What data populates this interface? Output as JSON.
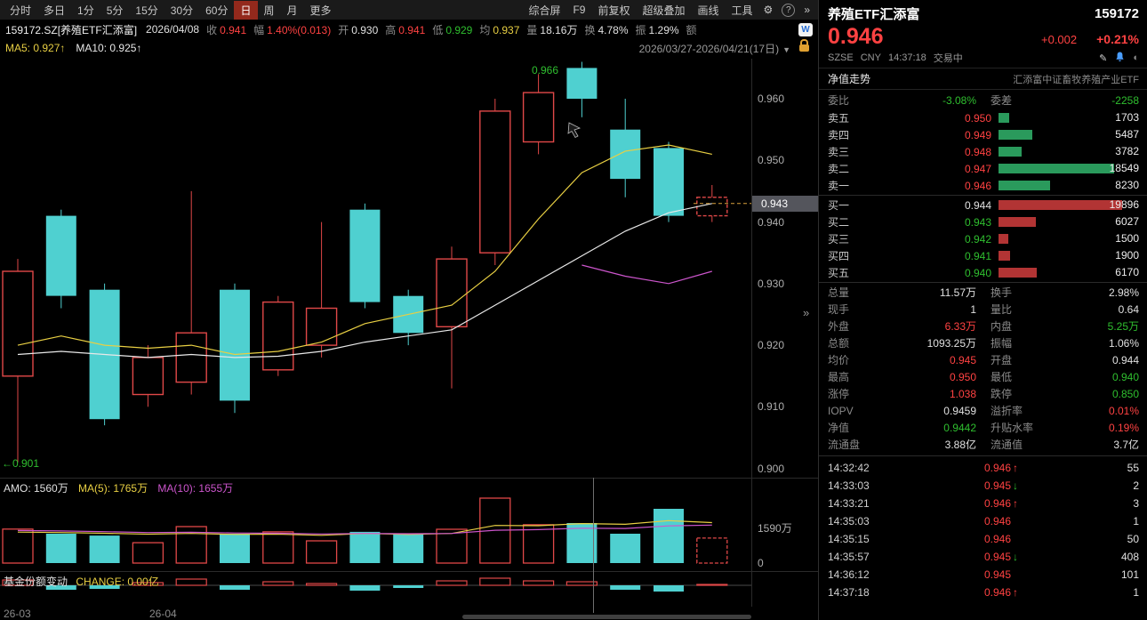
{
  "colors": {
    "up": "#e04848",
    "down": "#4fd0d0",
    "text_up": "#ff4242",
    "text_down": "#2fbf2f",
    "ma5": "#e8cf43",
    "ma10": "#e8e8e8",
    "nav": "#cc55cc",
    "bar_green": "#2a9a5c",
    "bar_red": "#b23434",
    "marker_bg": "#54555c",
    "dash_line": "#d9a13d"
  },
  "toolbar": {
    "periods": [
      "分时",
      "多日",
      "1分",
      "5分",
      "15分",
      "30分",
      "60分",
      "日",
      "周",
      "月",
      "更多"
    ],
    "active_period": "日",
    "tools": [
      "综合屏",
      "F9",
      "前复权",
      "超级叠加",
      "画线",
      "工具"
    ],
    "gear_icon": "⚙",
    "help_icon": "?",
    "more_icon": "»"
  },
  "info_bar": {
    "symbol": "159172.SZ[养殖ETF汇添富]",
    "date": "2026/04/08",
    "badge": "W",
    "fields": [
      {
        "label": "收",
        "value": "0.941",
        "color": "up"
      },
      {
        "label": "幅",
        "value": "1.40%(0.013)",
        "color": "up"
      },
      {
        "label": "开",
        "value": "0.930",
        "color": "flat"
      },
      {
        "label": "高",
        "value": "0.941",
        "color": "up"
      },
      {
        "label": "低",
        "value": "0.929",
        "color": "down"
      },
      {
        "label": "均",
        "value": "0.937",
        "color": "avg"
      },
      {
        "label": "量",
        "value": "18.16万",
        "color": "flat"
      },
      {
        "label": "换",
        "value": "4.78%",
        "color": "flat"
      },
      {
        "label": "振",
        "value": "1.29%",
        "color": "flat"
      },
      {
        "label": "额",
        "value": "",
        "color": "flat"
      }
    ]
  },
  "ma_bar": {
    "ma5": "MA5: 0.927↑",
    "ma10": "MA10: 0.925↑",
    "range": "2026/03/27-2026/04/21(17日)"
  },
  "chart_data": {
    "type": "candlestick",
    "x_labels": [
      {
        "label": "26-03",
        "x": 4
      },
      {
        "label": "26-04",
        "x": 168
      }
    ],
    "price": {
      "ymax": 0.9665,
      "ymin": 0.8985,
      "yticks": [
        "0.960",
        "0.950",
        "0.940",
        "0.930",
        "0.920",
        "0.910",
        "0.900"
      ],
      "ytick_values": [
        0.96,
        0.95,
        0.94,
        0.93,
        0.92,
        0.91,
        0.9
      ],
      "candles": [
        [
          0.915,
          0.932,
          0.934,
          0.901
        ],
        [
          0.941,
          0.928,
          0.942,
          0.926
        ],
        [
          0.929,
          0.908,
          0.93,
          0.907
        ],
        [
          0.912,
          0.918,
          0.92,
          0.91
        ],
        [
          0.914,
          0.922,
          0.945,
          0.912
        ],
        [
          0.929,
          0.911,
          0.93,
          0.909
        ],
        [
          0.916,
          0.927,
          0.928,
          0.915
        ],
        [
          0.92,
          0.926,
          0.94,
          0.918
        ],
        [
          0.942,
          0.927,
          0.943,
          0.926
        ],
        [
          0.928,
          0.922,
          0.929,
          0.92
        ],
        [
          0.923,
          0.934,
          0.936,
          0.913
        ],
        [
          0.935,
          0.958,
          0.96,
          0.933
        ],
        [
          0.953,
          0.961,
          0.964,
          0.951
        ],
        [
          0.965,
          0.96,
          0.966,
          0.957
        ],
        [
          0.955,
          0.947,
          0.96,
          0.944
        ],
        [
          0.952,
          0.941,
          0.953,
          0.94
        ],
        [
          0.941,
          0.944,
          0.946,
          0.94
        ]
      ],
      "ma5": [
        0.92,
        0.9215,
        0.92,
        0.9195,
        0.92,
        0.9185,
        0.919,
        0.9205,
        0.9235,
        0.925,
        0.9265,
        0.932,
        0.9405,
        0.948,
        0.9515,
        0.9525,
        0.951
      ],
      "ma10": [
        0.9185,
        0.919,
        0.9185,
        0.918,
        0.9185,
        0.918,
        0.9182,
        0.919,
        0.9205,
        0.9215,
        0.9225,
        0.9265,
        0.9305,
        0.9345,
        0.9385,
        0.9415,
        0.943
      ],
      "nav_line": {
        "start": 13,
        "values": [
          0.933,
          0.9312,
          0.93,
          0.932
        ]
      },
      "high_annotation": {
        "label": "0.966",
        "value": 0.966
      },
      "low_annotation": {
        "label": "←0.901",
        "value": 0.901
      },
      "marker": {
        "label": "0.943",
        "value": 0.943
      }
    },
    "volume": {
      "header": {
        "amo": "AMO: 1560万",
        "ma5": "MA(5): 1765万",
        "ma10": "MA(10): 1655万"
      },
      "ymax": 3200,
      "yticks": [
        {
          "label": "1590万",
          "value": 1590
        },
        {
          "label": "0",
          "value": 0
        }
      ],
      "values": [
        1480,
        1280,
        1200,
        890,
        1590,
        1280,
        1360,
        970,
        1360,
        1280,
        1475,
        2830,
        1670,
        1745,
        1280,
        2365,
        1090
      ],
      "ma5": [
        1350,
        1330,
        1300,
        1260,
        1290,
        1250,
        1260,
        1210,
        1290,
        1250,
        1290,
        1640,
        1630,
        1720,
        1690,
        1850,
        1765
      ],
      "ma10": [
        1420,
        1400,
        1370,
        1330,
        1340,
        1310,
        1300,
        1270,
        1290,
        1280,
        1290,
        1430,
        1460,
        1520,
        1510,
        1620,
        1655
      ]
    },
    "share_change": {
      "title": "基金份额变动",
      "change_label": "CHANGE: 0.00亿",
      "values": [
        0.06,
        -0.05,
        -0.04,
        0.03,
        0.07,
        -0.05,
        0.04,
        0.02,
        -0.06,
        -0.03,
        0.05,
        0.08,
        0.05,
        0.04,
        -0.05,
        -0.07,
        0.005
      ]
    }
  },
  "right_panel": {
    "name": "养殖ETF汇添富",
    "code": "159172",
    "price": "0.946",
    "change": "+0.002",
    "change_pct": "+0.21%",
    "exchange": "SZSE",
    "currency": "CNY",
    "time": "14:37:18",
    "status": "交易中",
    "tab": "净值走势",
    "fund_full_name": "汇添富中证畜牧养殖产业ETF",
    "weibi_label": "委比",
    "weibi": "-3.08%",
    "weicha_label": "委差",
    "weicha": "-2258",
    "order_book": {
      "asks": [
        {
          "label": "卖五",
          "price": "0.950",
          "price_color": "up",
          "qty": "1703"
        },
        {
          "label": "卖四",
          "price": "0.949",
          "price_color": "up",
          "qty": "5487"
        },
        {
          "label": "卖三",
          "price": "0.948",
          "price_color": "up",
          "qty": "3782"
        },
        {
          "label": "卖二",
          "price": "0.947",
          "price_color": "up",
          "qty": "18549"
        },
        {
          "label": "卖一",
          "price": "0.946",
          "price_color": "up",
          "qty": "8230"
        }
      ],
      "bids": [
        {
          "label": "买一",
          "price": "0.944",
          "price_color": "flat",
          "qty": "19896"
        },
        {
          "label": "买二",
          "price": "0.943",
          "price_color": "down",
          "qty": "6027"
        },
        {
          "label": "买三",
          "price": "0.942",
          "price_color": "down",
          "qty": "1500"
        },
        {
          "label": "买四",
          "price": "0.941",
          "price_color": "down",
          "qty": "1900"
        },
        {
          "label": "买五",
          "price": "0.940",
          "price_color": "down",
          "qty": "6170"
        }
      ]
    },
    "stats": [
      {
        "l1": "总量",
        "v1": "11.57万",
        "c1": "flat",
        "l2": "换手",
        "v2": "2.98%",
        "c2": "flat"
      },
      {
        "l1": "现手",
        "v1": "1",
        "c1": "flat",
        "l2": "量比",
        "v2": "0.64",
        "c2": "flat"
      },
      {
        "l1": "外盘",
        "v1": "6.33万",
        "c1": "up",
        "l2": "内盘",
        "v2": "5.25万",
        "c2": "down"
      },
      {
        "l1": "总额",
        "v1": "1093.25万",
        "c1": "flat",
        "l2": "振幅",
        "v2": "1.06%",
        "c2": "flat"
      },
      {
        "l1": "均价",
        "v1": "0.945",
        "c1": "up",
        "l2": "开盘",
        "v2": "0.944",
        "c2": "flat"
      },
      {
        "l1": "最高",
        "v1": "0.950",
        "c1": "up",
        "l2": "最低",
        "v2": "0.940",
        "c2": "down"
      },
      {
        "l1": "涨停",
        "v1": "1.038",
        "c1": "up",
        "l2": "跌停",
        "v2": "0.850",
        "c2": "down"
      },
      {
        "l1": "IOPV",
        "v1": "0.9459",
        "c1": "flat",
        "l2": "溢折率",
        "v2": "0.01%",
        "c2": "up"
      },
      {
        "l1": "净值",
        "v1": "0.9442",
        "c1": "down",
        "l2": "升贴水率",
        "v2": "0.19%",
        "c2": "up"
      },
      {
        "l1": "流通盘",
        "v1": "3.88亿",
        "c1": "flat",
        "l2": "流通值",
        "v2": "3.7亿",
        "c2": "flat"
      }
    ],
    "ticks": [
      {
        "time": "14:32:42",
        "price": "0.946",
        "price_color": "up",
        "dir": "up",
        "qty": "55"
      },
      {
        "time": "14:33:03",
        "price": "0.945",
        "price_color": "up",
        "dir": "down",
        "qty": "2"
      },
      {
        "time": "14:33:21",
        "price": "0.946",
        "price_color": "up",
        "dir": "up",
        "qty": "3"
      },
      {
        "time": "14:35:03",
        "price": "0.946",
        "price_color": "up",
        "dir": "none",
        "qty": "1"
      },
      {
        "time": "14:35:15",
        "price": "0.946",
        "price_color": "up",
        "dir": "none",
        "qty": "50"
      },
      {
        "time": "14:35:57",
        "price": "0.945",
        "price_color": "up",
        "dir": "down",
        "qty": "408"
      },
      {
        "time": "14:36:12",
        "price": "0.945",
        "price_color": "up",
        "dir": "none",
        "qty": "101"
      },
      {
        "time": "14:37:18",
        "price": "0.946",
        "price_color": "up",
        "dir": "up",
        "qty": "1"
      }
    ]
  }
}
